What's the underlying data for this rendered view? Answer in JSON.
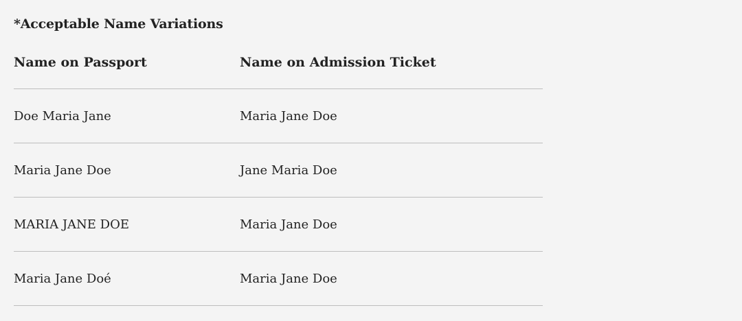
{
  "title": "*Acceptable Name Variations",
  "headers": [
    "Name on Passport",
    "Name on Admission Ticket"
  ],
  "rows": [
    [
      "Doe Maria Jane",
      "Maria Jane Doe"
    ],
    [
      "Maria Jane Doe",
      "Jane Maria Doe"
    ],
    [
      "MARIA JANE DOE",
      "Maria Jane Doe"
    ],
    [
      "Maria Jane Doé",
      "Maria Jane Doe"
    ]
  ]
}
